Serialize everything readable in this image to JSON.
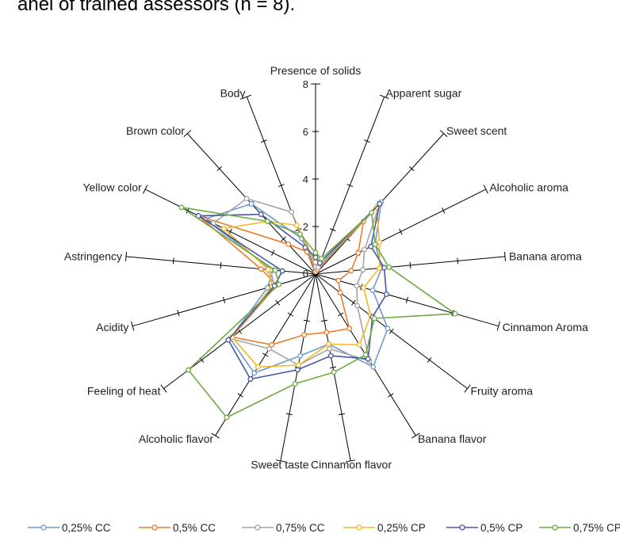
{
  "heading": "anel of trained assessors (n = 8).",
  "chart_data": {
    "type": "radar",
    "title": "",
    "axes": [
      "Presence of solids",
      "Apparent sugar",
      "Sweet scent",
      "Alcoholic aroma",
      "Banana aroma",
      "Cinnamon Aroma",
      "Fruity aroma",
      "Banana flavor",
      "Cinnamon flavor",
      "Sweet taste",
      "Alcoholic flavor",
      "Feeling of heat",
      "Acidity",
      "Astringency",
      "Yellow color",
      "Brown color",
      "Body"
    ],
    "rlim": [
      0,
      8
    ],
    "ticks": [
      "0",
      "2",
      "4",
      "6",
      "8"
    ],
    "grid": false,
    "legend_position": "bottom",
    "series": [
      {
        "name": "0,25% CC",
        "color": "#6f9bd1",
        "values": [
          0.2,
          0.3,
          4.1,
          2.8,
          2.8,
          2.5,
          3.8,
          4.6,
          3.0,
          3.5,
          4.9,
          4.5,
          2.1,
          1.8,
          5.2,
          4.0,
          1.6
        ]
      },
      {
        "name": "0,5% CC",
        "color": "#e97d2e",
        "values": [
          0.1,
          0.2,
          3.0,
          2.0,
          1.5,
          1.0,
          1.3,
          2.7,
          2.5,
          2.6,
          3.5,
          4.4,
          1.7,
          2.3,
          5.5,
          1.7,
          1.0
        ]
      },
      {
        "name": "0,75% CC",
        "color": "#a5a5a5",
        "values": [
          0.3,
          0.3,
          4.0,
          2.3,
          2.0,
          1.8,
          2.2,
          4.3,
          3.2,
          3.9,
          3.7,
          4.5,
          1.8,
          1.9,
          4.8,
          4.3,
          2.8
        ]
      },
      {
        "name": "0,25% CP",
        "color": "#f5b823",
        "values": [
          0.5,
          0.5,
          3.8,
          3.0,
          2.7,
          2.1,
          2.9,
          3.5,
          3.0,
          3.9,
          4.6,
          4.4,
          1.9,
          2.0,
          4.3,
          3.0,
          2.2
        ]
      },
      {
        "name": "0,5% CP",
        "color": "#4658a2",
        "values": [
          0.7,
          0.5,
          4.0,
          2.6,
          2.9,
          3.1,
          3.0,
          4.2,
          3.5,
          4.1,
          5.2,
          4.6,
          1.8,
          1.4,
          5.5,
          3.4,
          1.2
        ]
      },
      {
        "name": "0,75% CP",
        "color": "#6ea946",
        "values": [
          0.9,
          0.7,
          3.5,
          2.8,
          3.1,
          6.1,
          3.1,
          4.0,
          4.2,
          4.7,
          7.1,
          6.7,
          1.6,
          1.7,
          6.3,
          3.0,
          1.8
        ]
      }
    ]
  }
}
